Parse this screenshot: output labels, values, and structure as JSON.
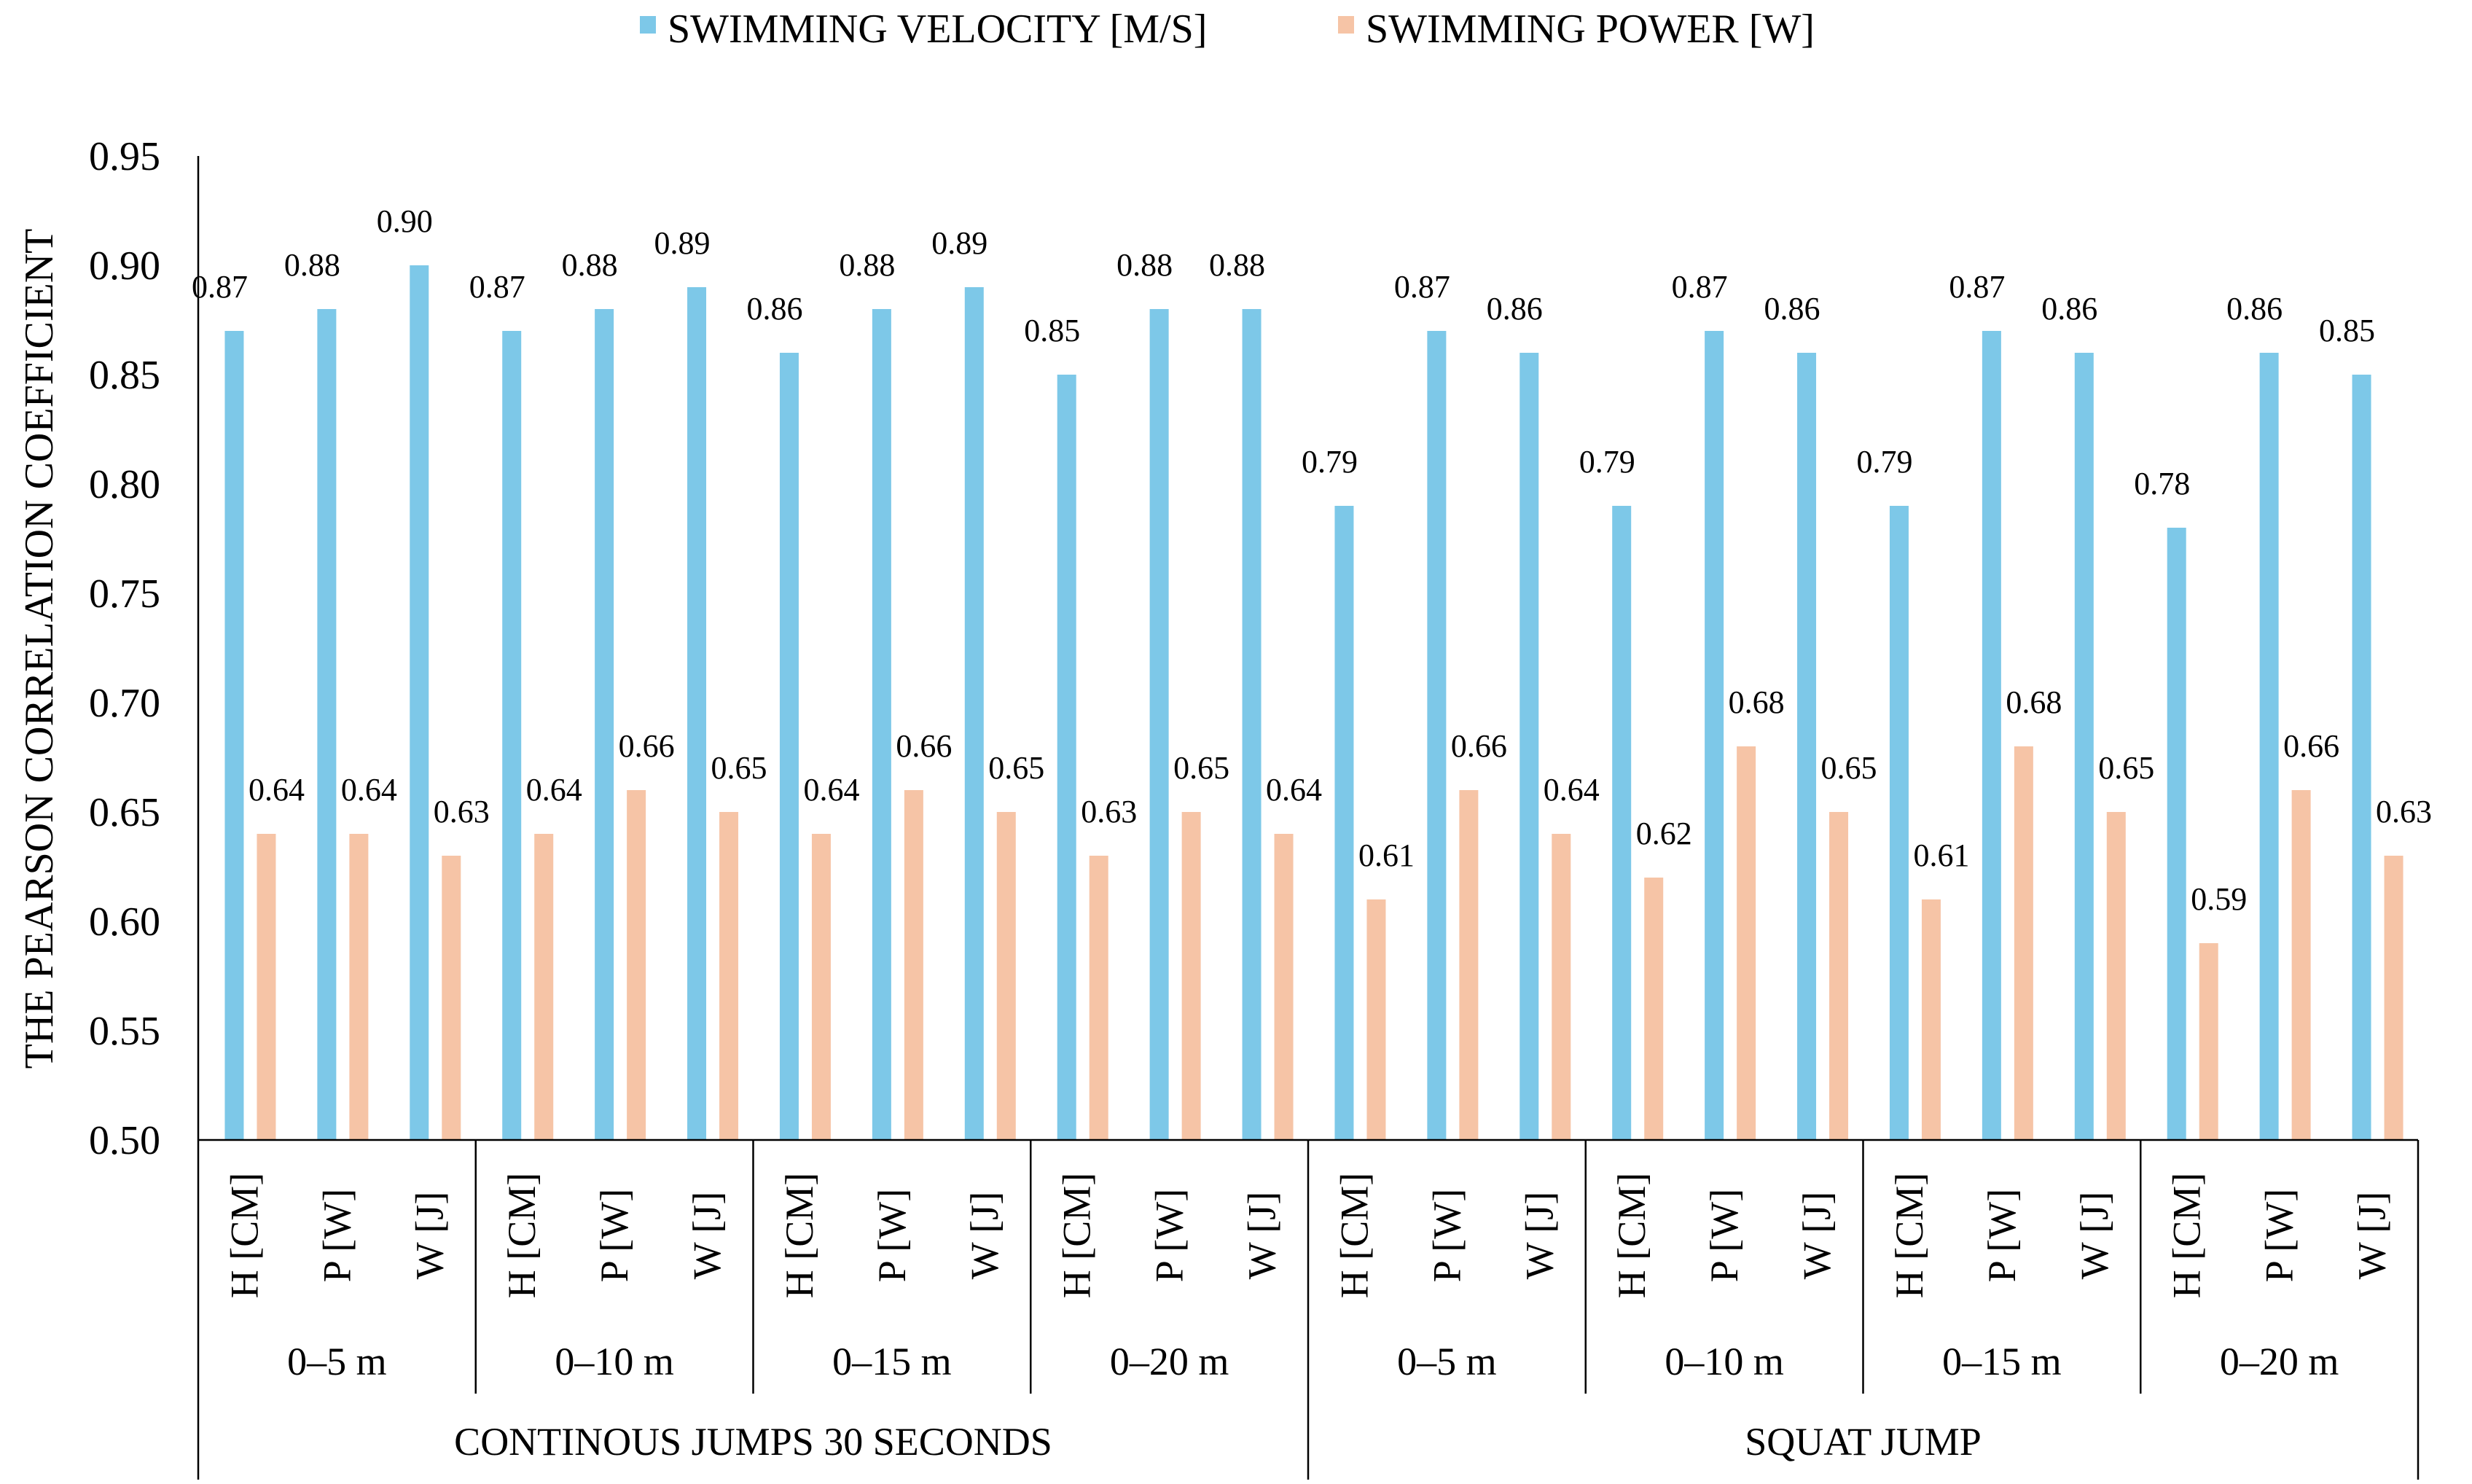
{
  "chart_data": {
    "type": "bar",
    "title": "",
    "ylabel": "THE PEARSON CORRELATION COEFFICIENT",
    "xlabel": "",
    "ylim": [
      0.5,
      0.95
    ],
    "yticks": [
      "0.50",
      "0.55",
      "0.60",
      "0.65",
      "0.70",
      "0.75",
      "0.80",
      "0.85",
      "0.90",
      "0.95"
    ],
    "grid": false,
    "legend_position": "top-center",
    "colors": {
      "velocity": "#7dc8e8",
      "power": "#f6c4a6"
    },
    "super_groups": [
      {
        "label": "CONTINOUS JUMPS 30 SECONDS",
        "groups": [
          "0–5 m",
          "0–10 m",
          "0–15 m",
          "0–20 m"
        ]
      },
      {
        "label": "SQUAT JUMP",
        "groups": [
          "0–5 m",
          "0–10 m",
          "0–15 m",
          "0–20 m"
        ]
      }
    ],
    "subcategories": [
      "H [CM]",
      "P [W]",
      "W [J]"
    ],
    "series": [
      {
        "name": "SWIMMING VELOCITY [M/S]",
        "values": [
          0.87,
          0.88,
          0.9,
          0.87,
          0.88,
          0.89,
          0.86,
          0.88,
          0.89,
          0.85,
          0.88,
          0.88,
          0.79,
          0.87,
          0.86,
          0.79,
          0.87,
          0.86,
          0.79,
          0.87,
          0.86,
          0.78,
          0.86,
          0.85
        ],
        "labels": [
          "0.87",
          "0.88",
          "0.90",
          "0.87",
          "0.88",
          "0.89",
          "0.86",
          "0.88",
          "0.89",
          "0.85",
          "0.88",
          "0.88",
          "0.79",
          "0.87",
          "0.86",
          "0.79",
          "0.87",
          "0.86",
          "0.79",
          "0.87",
          "0.86",
          "0.78",
          "0.86",
          "0.85"
        ]
      },
      {
        "name": "SWIMMING POWER [W]",
        "values": [
          0.64,
          0.64,
          0.63,
          0.64,
          0.66,
          0.65,
          0.64,
          0.66,
          0.65,
          0.63,
          0.65,
          0.64,
          0.61,
          0.66,
          0.64,
          0.62,
          0.68,
          0.65,
          0.61,
          0.68,
          0.65,
          0.59,
          0.66,
          0.63
        ],
        "labels": [
          "0.64",
          "0.64",
          "0.63",
          "0.64",
          "0.66",
          "0.65",
          "0.64",
          "0.66",
          "0.65",
          "0.63",
          "0.65",
          "0.64",
          "0.61",
          "0.66",
          "0.64",
          "0.62",
          "0.68",
          "0.65",
          "0.61",
          "0.68",
          "0.65",
          "0.59",
          "0.66",
          "0.63"
        ]
      }
    ]
  }
}
